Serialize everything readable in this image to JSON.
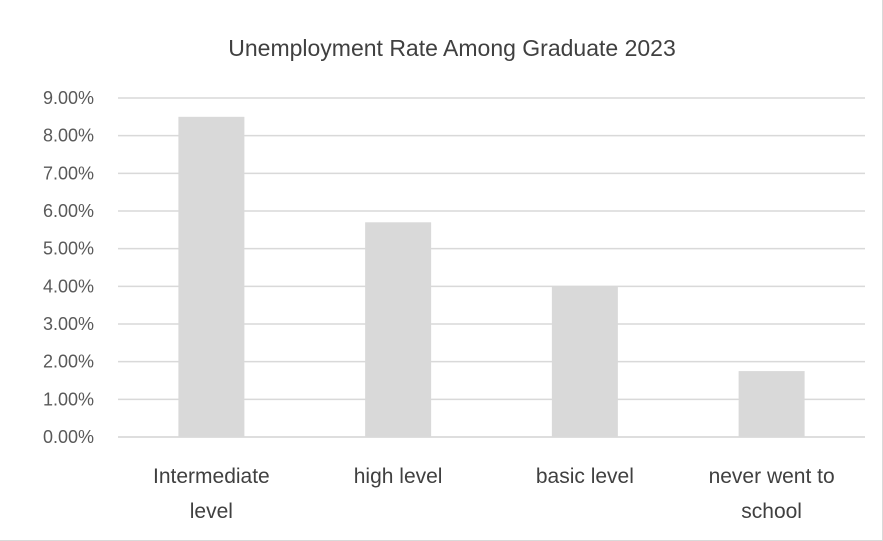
{
  "chart_data": {
    "type": "bar",
    "title": "Unemployment Rate Among Graduate 2023",
    "xlabel": "",
    "ylabel": "",
    "categories": [
      [
        "Intermediate",
        "level"
      ],
      [
        "high level"
      ],
      [
        "basic level"
      ],
      [
        "never went to",
        "school"
      ]
    ],
    "values": [
      8.5,
      5.7,
      4.0,
      1.75
    ],
    "ylim": [
      0,
      9
    ],
    "yticks": [
      "0.00%",
      "1.00%",
      "2.00%",
      "3.00%",
      "4.00%",
      "5.00%",
      "6.00%",
      "7.00%",
      "8.00%",
      "9.00%"
    ],
    "grid": true,
    "legend": "none",
    "bar_color": "#d9d9d9",
    "grid_color": "#d9d9d9"
  }
}
